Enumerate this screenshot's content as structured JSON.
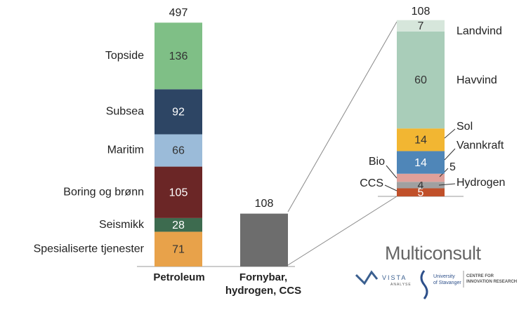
{
  "chart_data": [
    {
      "type": "stacked_bar",
      "categories": [
        "Petroleum",
        "Fornybar, hydrogen, CCS"
      ],
      "totals": [
        497,
        108
      ],
      "series": [
        {
          "name": "Spesialiserte tjenester",
          "color": "#e8a24a",
          "values": [
            71,
            null
          ]
        },
        {
          "name": "Seismikk",
          "color": "#3d6b4f",
          "values": [
            28,
            null
          ]
        },
        {
          "name": "Boring og brønn",
          "color": "#6b2626",
          "values": [
            105,
            null
          ]
        },
        {
          "name": "Maritim",
          "color": "#9bbbd9",
          "values": [
            66,
            null
          ]
        },
        {
          "name": "Subsea",
          "color": "#2d4564",
          "values": [
            92,
            null
          ]
        },
        {
          "name": "Topside",
          "color": "#7fbf86",
          "values": [
            136,
            null
          ]
        },
        {
          "color": "#6d6d6d",
          "values": [
            null,
            108
          ]
        }
      ]
    },
    {
      "type": "stacked_bar",
      "totals": [
        108
      ],
      "series": [
        {
          "name": "CCS",
          "color": "#c0502a",
          "values": [
            5
          ]
        },
        {
          "name": "Hydrogen",
          "color": "#a0a0a0",
          "values": [
            4
          ]
        },
        {
          "name": "Bio",
          "color": "#e0a09a",
          "values": [
            5
          ]
        },
        {
          "name": "Vannkraft",
          "color": "#4f86b8",
          "values": [
            14
          ]
        },
        {
          "name": "Sol",
          "color": "#f2b632",
          "values": [
            14
          ]
        },
        {
          "name": "Havvind",
          "color": "#a9cdb9",
          "values": [
            60
          ]
        },
        {
          "name": "Landvind",
          "color": "#d6e6db",
          "values": [
            7
          ]
        }
      ]
    }
  ],
  "logos": {
    "main": "Multiconsult",
    "vista": "VISTA",
    "vista_sub": "ANALYSE",
    "uis_1": "University",
    "uis_2": "of Stavanger",
    "cir_1": "CENTRE FOR",
    "cir_2": "INNOVATION RESEARCH"
  }
}
